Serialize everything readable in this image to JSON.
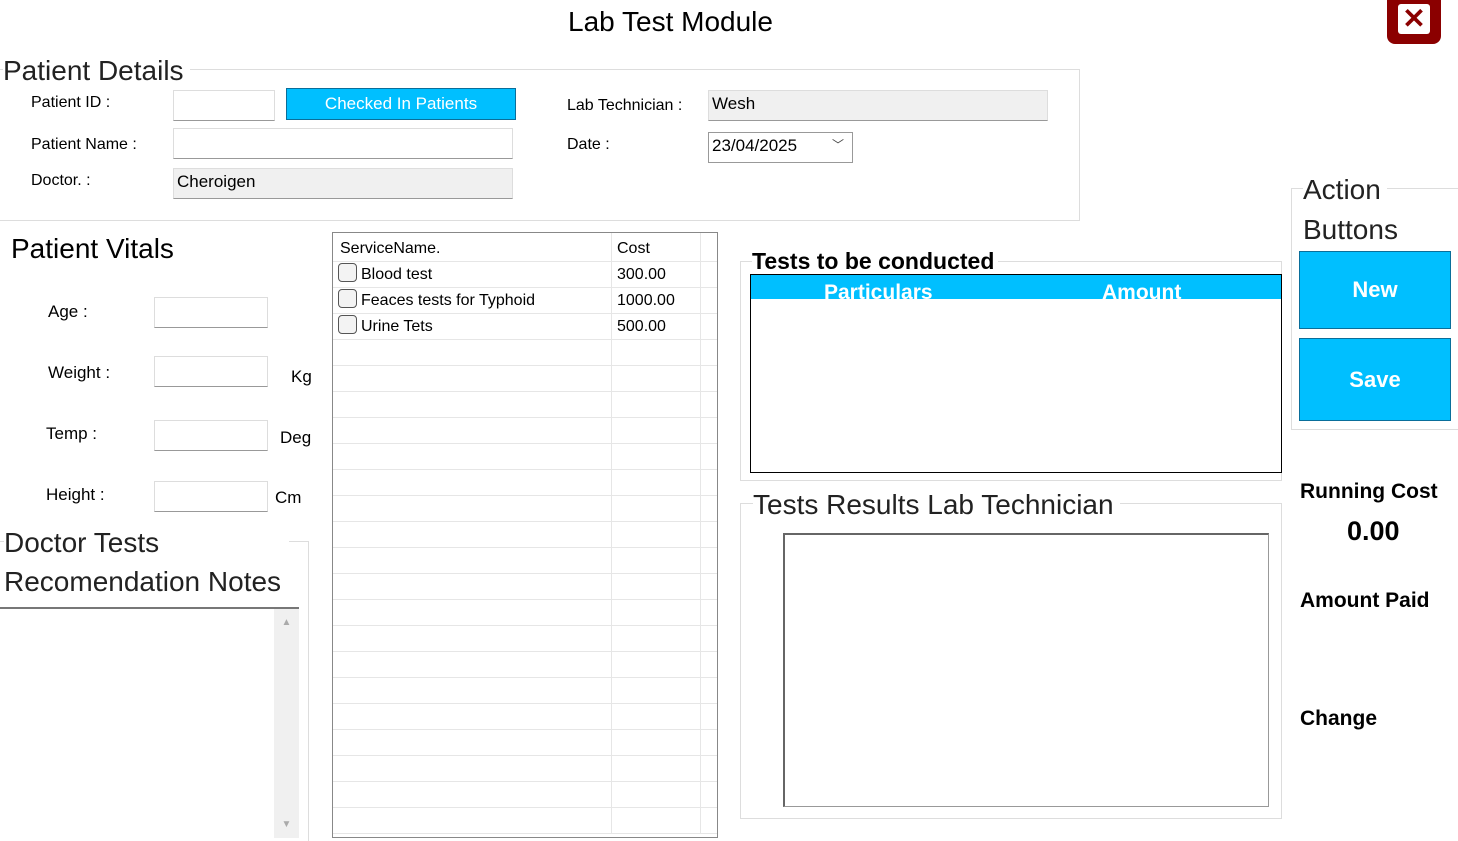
{
  "window": {
    "title": "Lab Test Module",
    "close_icon": "close-icon",
    "close_color": "#8b0000"
  },
  "patient_details": {
    "title": "Patient Details",
    "patient_id_label": "Patient ID :",
    "patient_id_value": "",
    "checked_in_button": "Checked In Patients",
    "patient_name_label": "Patient Name :",
    "patient_name_value": "",
    "doctor_label": "Doctor. :",
    "doctor_value": "Cheroigen",
    "lab_tech_label": "Lab Technician :",
    "lab_tech_value": "Wesh",
    "date_label": "Date :",
    "date_value": "23/04/2025"
  },
  "vitals": {
    "title": "Patient Vitals",
    "age_label": "Age :",
    "weight_label": "Weight :",
    "weight_unit": "Kg",
    "temp_label": "Temp :",
    "temp_unit": "Deg",
    "height_label": "Height :",
    "height_unit": "Cm"
  },
  "notes": {
    "title_line1": "Doctor Tests",
    "title_line2": "Recomendation Notes"
  },
  "services": {
    "headers": [
      "ServiceName.",
      "Cost"
    ],
    "rows": [
      {
        "name": "Blood test",
        "cost": "300.00",
        "checked": false
      },
      {
        "name": "Feaces tests for Typhoid",
        "cost": "1000.00",
        "checked": false
      },
      {
        "name": "Urine Tets",
        "cost": "500.00",
        "checked": false
      }
    ]
  },
  "tests": {
    "title": "Tests to be conducted",
    "headers": [
      "Particulars",
      "Amount"
    ]
  },
  "results": {
    "title": "Tests Results Lab Technician"
  },
  "actions": {
    "title_line1": "Action",
    "title_line2": "Buttons",
    "new": "New",
    "save": "Save"
  },
  "summary": {
    "running_cost_label": "Running Cost",
    "running_cost_value": "0.00",
    "amount_paid_label": "Amount Paid",
    "change_label": "Change"
  },
  "colors": {
    "accent": "#00bfff"
  }
}
